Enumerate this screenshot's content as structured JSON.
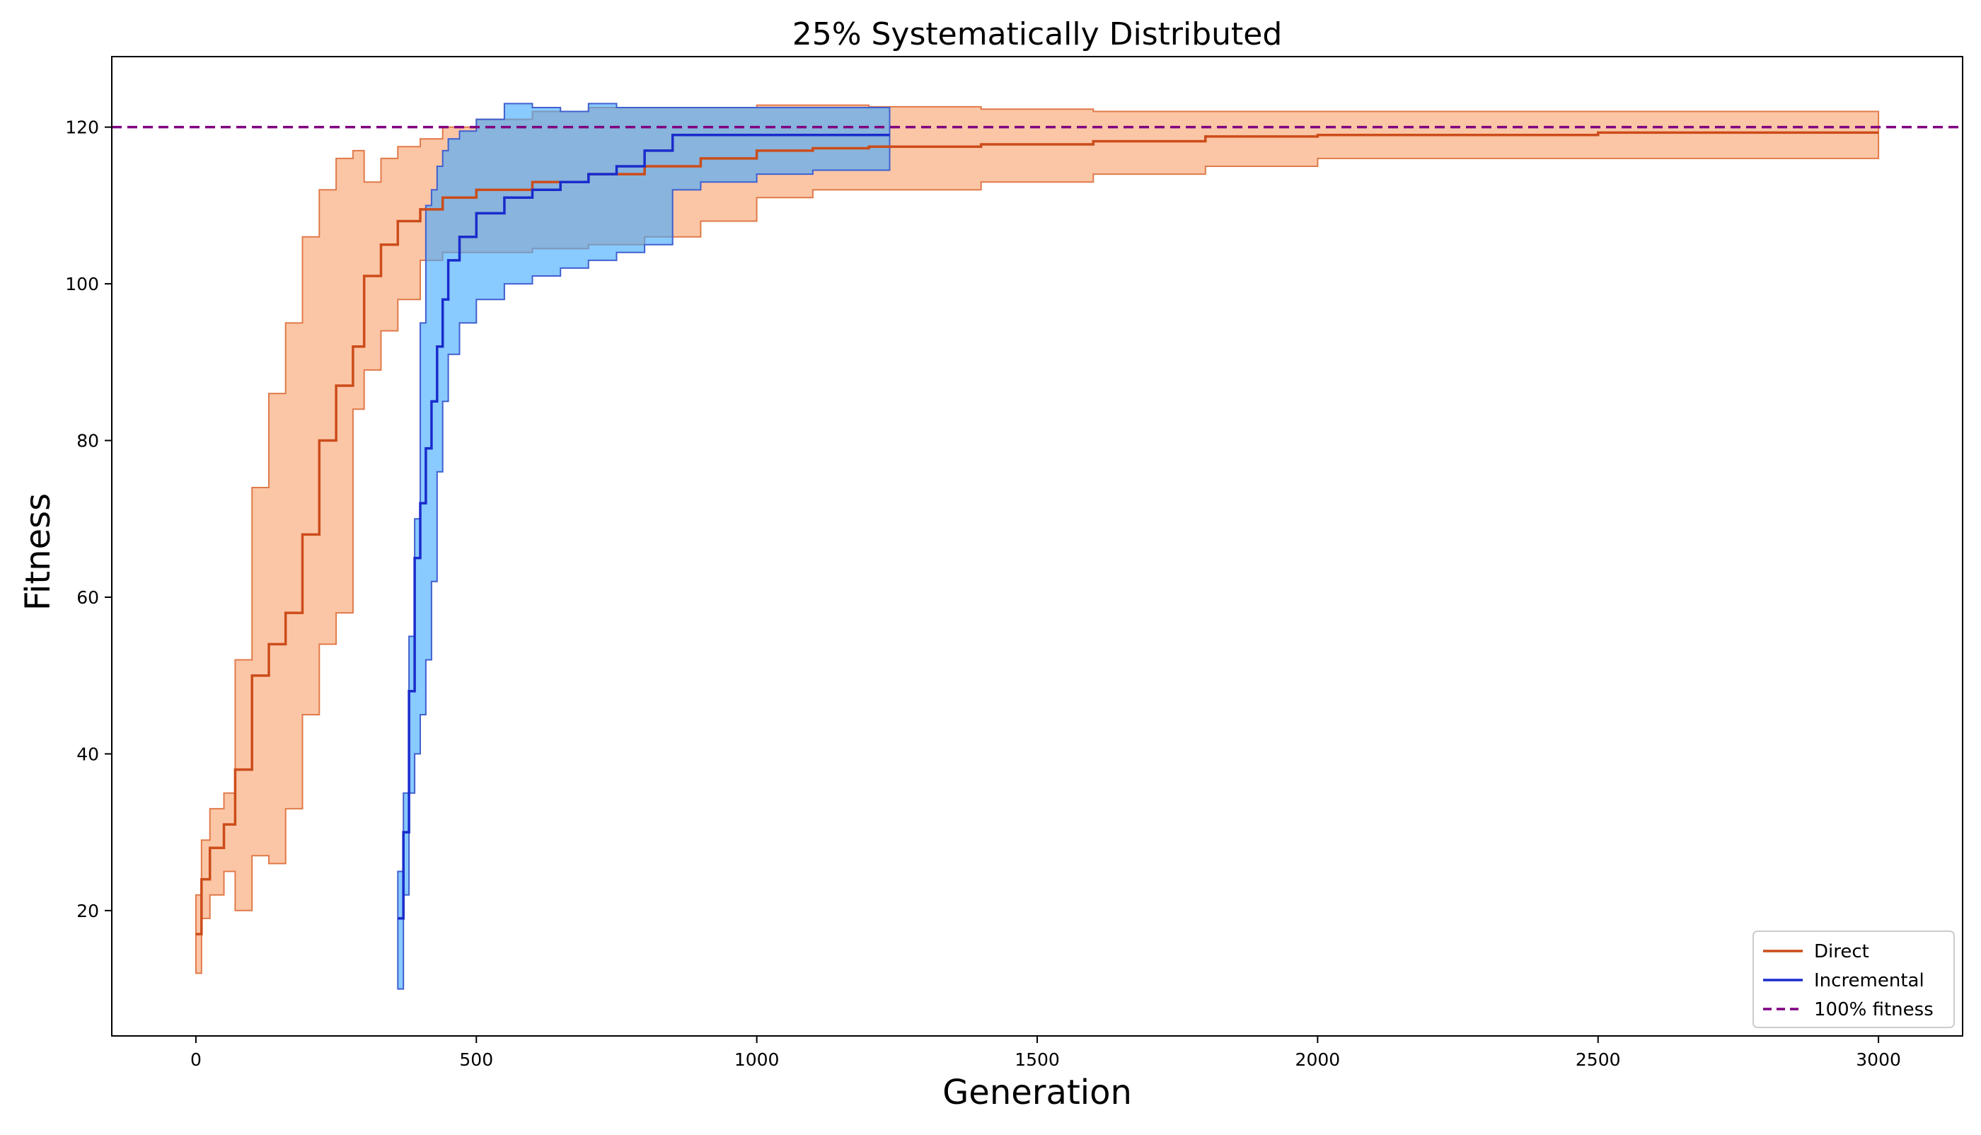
{
  "chart_data": {
    "type": "line",
    "title": "25% Systematically Distributed",
    "xlabel": "Generation",
    "ylabel": "Fitness",
    "xlim": [
      -150,
      3150
    ],
    "ylim": [
      4,
      129
    ],
    "xticks": [
      0,
      500,
      1000,
      1500,
      2000,
      2500,
      3000
    ],
    "yticks": [
      20,
      40,
      60,
      80,
      100,
      120
    ],
    "grid": false,
    "legend_position": "bottom-right",
    "reference_line": {
      "name": "100% fitness",
      "y": 120,
      "color": "#800080",
      "style": "dashed"
    },
    "series": [
      {
        "name": "Direct",
        "color": "#cc4c1a",
        "band_color": "#f9a06a",
        "band_edge": "#e07a4a",
        "band_opacity": 0.6,
        "x": [
          0,
          10,
          25,
          50,
          70,
          100,
          130,
          160,
          190,
          220,
          250,
          280,
          300,
          330,
          360,
          400,
          440,
          500,
          600,
          700,
          800,
          900,
          1000,
          1100,
          1200,
          1400,
          1600,
          1800,
          2000,
          2500,
          3000
        ],
        "mean": [
          17,
          24,
          28,
          31,
          38,
          50,
          54,
          58,
          68,
          80,
          87,
          92,
          101,
          105,
          108,
          109.5,
          111,
          112,
          113,
          114,
          115,
          116,
          117,
          117.3,
          117.5,
          117.8,
          118.2,
          118.8,
          119,
          119.3,
          119.3
        ],
        "upper": [
          22,
          29,
          33,
          35,
          52,
          74,
          86,
          95,
          106,
          112,
          116,
          117,
          113,
          116,
          117.5,
          118.5,
          120,
          121,
          122,
          122.5,
          122.5,
          122.5,
          122.8,
          122.8,
          122.6,
          122.3,
          122,
          122,
          122,
          122,
          122
        ],
        "lower": [
          12,
          19,
          22,
          25,
          20,
          27,
          26,
          33,
          45,
          54,
          58,
          84,
          89,
          94,
          98,
          103,
          104,
          104,
          104.5,
          105,
          106,
          108,
          111,
          112,
          112,
          113,
          114,
          115,
          116,
          116,
          116
        ]
      },
      {
        "name": "Incremental",
        "color": "#1a2bcc",
        "band_color": "#40aaff",
        "band_edge": "#4060d0",
        "band_opacity": 0.62,
        "x": [
          360,
          370,
          380,
          390,
          400,
          410,
          420,
          430,
          440,
          450,
          470,
          500,
          550,
          600,
          650,
          700,
          750,
          800,
          850,
          900,
          1000,
          1100,
          1237
        ],
        "mean": [
          19,
          30,
          48,
          65,
          72,
          79,
          85,
          92,
          98,
          103,
          106,
          109,
          111,
          112,
          113,
          114,
          115,
          117,
          119,
          119,
          119,
          119,
          119
        ],
        "upper": [
          25,
          35,
          55,
          70,
          95,
          110,
          112,
          115,
          117,
          118.5,
          119.5,
          121,
          123,
          122.5,
          122,
          123,
          122.5,
          122.5,
          122.5,
          122.5,
          122.5,
          122.5,
          122.5
        ],
        "lower": [
          10,
          22,
          35,
          40,
          45,
          52,
          62,
          76,
          85,
          91,
          95,
          98,
          100,
          101,
          102,
          103,
          104,
          105,
          112,
          113,
          114,
          114.5,
          115
        ]
      }
    ]
  }
}
